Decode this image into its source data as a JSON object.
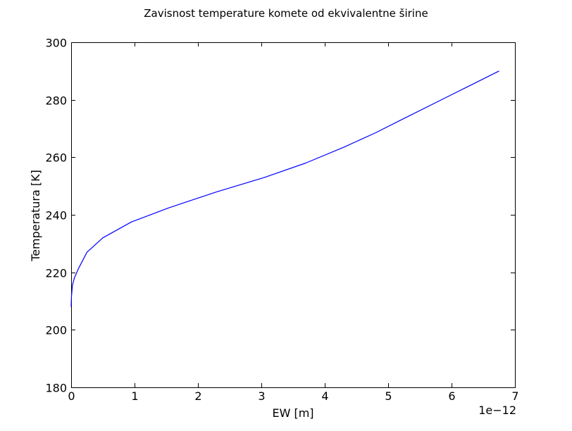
{
  "chart_data": {
    "type": "line",
    "title": "Zavisnost temperature komete od ekvivalentne širine",
    "xlabel": "EW [m]",
    "ylabel": "Temperatura [K]",
    "x_offset_label": "1e−12",
    "xlim": [
      0,
      7
    ],
    "ylim": [
      180,
      300
    ],
    "x_ticks": [
      "0",
      "1",
      "2",
      "3",
      "4",
      "5",
      "6",
      "7"
    ],
    "y_ticks": [
      "180",
      "200",
      "220",
      "240",
      "260",
      "280",
      "300"
    ],
    "x_tick_values": [
      0,
      1,
      2,
      3,
      4,
      5,
      6,
      7
    ],
    "y_tick_values": [
      180,
      200,
      220,
      240,
      260,
      280,
      300
    ],
    "grid": false,
    "series": [
      {
        "color": "#0000ff",
        "x": [
          0.0,
          0.005,
          0.02,
          0.05,
          0.12,
          0.25,
          0.5,
          0.95,
          1.55,
          2.3,
          3.05,
          3.7,
          4.3,
          4.8,
          5.25,
          5.75,
          6.25,
          6.75
        ],
        "y": [
          208,
          211.5,
          215.5,
          218,
          221.5,
          227,
          232,
          237.5,
          242.5,
          248,
          253,
          258,
          263.5,
          268.5,
          273.5,
          279,
          284.5,
          290
        ]
      }
    ]
  }
}
